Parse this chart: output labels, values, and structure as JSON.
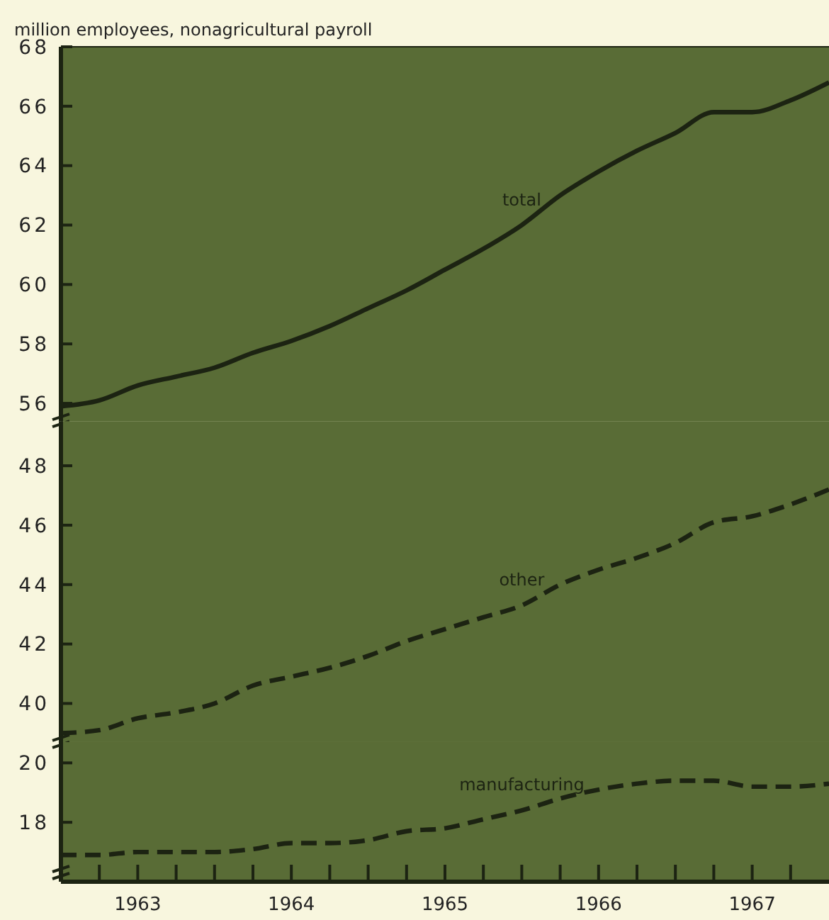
{
  "chart_data": [
    {
      "type": "line",
      "title": "million employees, nonagricultural payroll",
      "x": [
        1963,
        1963.25,
        1963.5,
        1963.75,
        1964,
        1964.25,
        1964.5,
        1964.75,
        1965,
        1965.25,
        1965.5,
        1965.75,
        1966,
        1966.25,
        1966.5,
        1966.75,
        1967,
        1967.25,
        1967.5,
        1967.75,
        1968
      ],
      "xlim": [
        1963,
        1968
      ],
      "ylim": [
        55.4,
        68
      ],
      "yticks": [
        56,
        58,
        60,
        62,
        64,
        66,
        68
      ],
      "tick_labels": "y",
      "line_style": "solid",
      "series": [
        {
          "name": "total",
          "color": "#1c2312",
          "values": [
            55.9,
            56.1,
            56.6,
            56.9,
            57.2,
            57.7,
            58.1,
            58.6,
            59.2,
            59.8,
            60.5,
            61.2,
            62.0,
            63.0,
            63.8,
            64.5,
            65.1,
            65.8,
            65.8,
            66.2,
            66.8
          ]
        }
      ]
    },
    {
      "type": "line",
      "x": [
        1963,
        1963.25,
        1963.5,
        1963.75,
        1964,
        1964.25,
        1964.5,
        1964.75,
        1965,
        1965.25,
        1965.5,
        1965.75,
        1966,
        1966.25,
        1966.5,
        1966.75,
        1967,
        1967.25,
        1967.5,
        1967.75,
        1968
      ],
      "xlim": [
        1963,
        1968
      ],
      "ylim": [
        38.7,
        49.5
      ],
      "yticks": [
        40,
        42,
        44,
        46,
        48
      ],
      "tick_labels": "y",
      "line_style": "dashed",
      "series": [
        {
          "name": "other",
          "color": "#1c2312",
          "values": [
            39.0,
            39.1,
            39.5,
            39.7,
            40.0,
            40.6,
            40.9,
            41.2,
            41.6,
            42.1,
            42.5,
            42.9,
            43.3,
            44.0,
            44.5,
            44.9,
            45.4,
            46.1,
            46.3,
            46.7,
            47.2
          ]
        }
      ]
    },
    {
      "type": "line",
      "x": [
        1963,
        1963.25,
        1963.5,
        1963.75,
        1964,
        1964.25,
        1964.5,
        1964.75,
        1965,
        1965.25,
        1965.5,
        1965.75,
        1966,
        1966.25,
        1966.5,
        1966.75,
        1967,
        1967.25,
        1967.5,
        1967.75,
        1968
      ],
      "xlim": [
        1963,
        1968
      ],
      "ylim": [
        16,
        20.7
      ],
      "yticks": [
        18,
        20
      ],
      "line_style": "dashed",
      "xticks": [
        {
          "value": 1963,
          "label": null
        },
        {
          "value": 1963.25,
          "label": null
        },
        {
          "value": 1963.5,
          "label": "1963"
        },
        {
          "value": 1963.75,
          "label": null
        },
        {
          "value": 1964,
          "label": null
        },
        {
          "value": 1964.25,
          "label": null
        },
        {
          "value": 1964.5,
          "label": "1964"
        },
        {
          "value": 1964.75,
          "label": null
        },
        {
          "value": 1965,
          "label": null
        },
        {
          "value": 1965.25,
          "label": null
        },
        {
          "value": 1965.5,
          "label": "1965"
        },
        {
          "value": 1965.75,
          "label": null
        },
        {
          "value": 1966,
          "label": null
        },
        {
          "value": 1966.25,
          "label": null
        },
        {
          "value": 1966.5,
          "label": "1966"
        },
        {
          "value": 1966.75,
          "label": null
        },
        {
          "value": 1967,
          "label": null
        },
        {
          "value": 1967.25,
          "label": null
        },
        {
          "value": 1967.5,
          "label": "1967"
        },
        {
          "value": 1967.75,
          "label": null
        }
      ],
      "series": [
        {
          "name": "manufacturing",
          "color": "#1c2312",
          "values": [
            16.9,
            16.9,
            17.0,
            17.0,
            17.0,
            17.1,
            17.3,
            17.3,
            17.4,
            17.7,
            17.8,
            18.1,
            18.4,
            18.8,
            19.1,
            19.3,
            19.4,
            19.4,
            19.2,
            19.2,
            19.3
          ]
        }
      ]
    }
  ]
}
